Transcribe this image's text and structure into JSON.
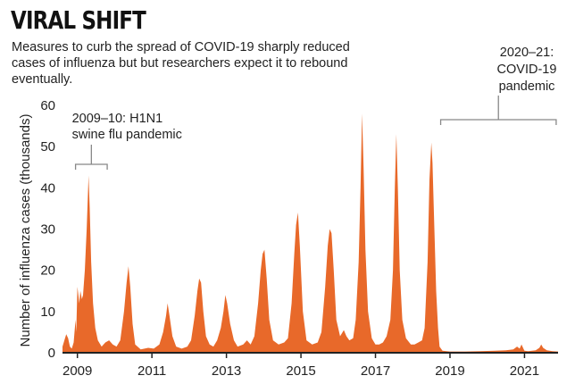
{
  "header": {
    "title": "VIRAL SHIFT",
    "subtitle": "Measures to curb the spread of COVID-19 sharply reduced cases of influenza but but researchers expect it to rebound eventually."
  },
  "colors": {
    "fill": "#e8692a",
    "axis": "#222222",
    "bracket": "#888888"
  },
  "chart_data": {
    "type": "area",
    "ylabel": "Number of influenza cases (thousands)",
    "ylim": [
      0,
      60
    ],
    "yticks": [
      0,
      10,
      20,
      30,
      40,
      50,
      60
    ],
    "xlim": [
      2008.6,
      2021.9
    ],
    "xticks": [
      2009,
      2011,
      2013,
      2015,
      2017,
      2019,
      2021
    ],
    "grid": false,
    "series": [
      {
        "points": [
          [
            2008.6,
            1.5
          ],
          [
            2008.65,
            3
          ],
          [
            2008.7,
            4.5
          ],
          [
            2008.75,
            3.5
          ],
          [
            2008.8,
            1.5
          ],
          [
            2008.85,
            1
          ],
          [
            2008.9,
            2.5
          ],
          [
            2008.95,
            8
          ],
          [
            2008.97,
            5
          ],
          [
            2009.0,
            16
          ],
          [
            2009.05,
            12
          ],
          [
            2009.08,
            15
          ],
          [
            2009.12,
            13
          ],
          [
            2009.15,
            14
          ],
          [
            2009.2,
            20
          ],
          [
            2009.25,
            30
          ],
          [
            2009.3,
            43
          ],
          [
            2009.33,
            35
          ],
          [
            2009.37,
            22
          ],
          [
            2009.42,
            12
          ],
          [
            2009.48,
            6
          ],
          [
            2009.55,
            3
          ],
          [
            2009.65,
            1.5
          ],
          [
            2009.75,
            2.5
          ],
          [
            2009.85,
            3
          ],
          [
            2009.95,
            2
          ],
          [
            2010.05,
            1.5
          ],
          [
            2010.15,
            3
          ],
          [
            2010.25,
            10
          ],
          [
            2010.32,
            17
          ],
          [
            2010.37,
            21
          ],
          [
            2010.42,
            16
          ],
          [
            2010.48,
            7
          ],
          [
            2010.55,
            2
          ],
          [
            2010.7,
            0.8
          ],
          [
            2010.9,
            1.2
          ],
          [
            2011.05,
            1
          ],
          [
            2011.2,
            2
          ],
          [
            2011.3,
            5
          ],
          [
            2011.38,
            9
          ],
          [
            2011.42,
            12
          ],
          [
            2011.47,
            9
          ],
          [
            2011.55,
            4
          ],
          [
            2011.65,
            1.5
          ],
          [
            2011.8,
            1
          ],
          [
            2011.95,
            1.5
          ],
          [
            2012.05,
            3
          ],
          [
            2012.15,
            9
          ],
          [
            2012.22,
            15
          ],
          [
            2012.27,
            18
          ],
          [
            2012.32,
            17
          ],
          [
            2012.38,
            10
          ],
          [
            2012.45,
            4
          ],
          [
            2012.55,
            2
          ],
          [
            2012.65,
            1.5
          ],
          [
            2012.75,
            3
          ],
          [
            2012.85,
            6
          ],
          [
            2012.92,
            10
          ],
          [
            2012.97,
            14
          ],
          [
            2013.02,
            12
          ],
          [
            2013.1,
            7
          ],
          [
            2013.2,
            3
          ],
          [
            2013.3,
            1.5
          ],
          [
            2013.45,
            2
          ],
          [
            2013.55,
            3
          ],
          [
            2013.65,
            2
          ],
          [
            2013.75,
            4
          ],
          [
            2013.85,
            12
          ],
          [
            2013.92,
            20
          ],
          [
            2013.97,
            24
          ],
          [
            2014.02,
            25
          ],
          [
            2014.08,
            18
          ],
          [
            2014.15,
            8
          ],
          [
            2014.25,
            3
          ],
          [
            2014.4,
            2
          ],
          [
            2014.55,
            2.5
          ],
          [
            2014.65,
            3.5
          ],
          [
            2014.75,
            12
          ],
          [
            2014.82,
            24
          ],
          [
            2014.87,
            31
          ],
          [
            2014.92,
            34
          ],
          [
            2014.97,
            26
          ],
          [
            2015.05,
            10
          ],
          [
            2015.15,
            3
          ],
          [
            2015.3,
            2
          ],
          [
            2015.45,
            2.5
          ],
          [
            2015.55,
            5
          ],
          [
            2015.65,
            16
          ],
          [
            2015.72,
            26
          ],
          [
            2015.77,
            30
          ],
          [
            2015.82,
            29
          ],
          [
            2015.88,
            20
          ],
          [
            2015.95,
            8
          ],
          [
            2016.05,
            4
          ],
          [
            2016.15,
            5.5
          ],
          [
            2016.22,
            4
          ],
          [
            2016.3,
            3
          ],
          [
            2016.4,
            3.5
          ],
          [
            2016.47,
            8
          ],
          [
            2016.55,
            22
          ],
          [
            2016.6,
            40
          ],
          [
            2016.64,
            58
          ],
          [
            2016.68,
            45
          ],
          [
            2016.73,
            25
          ],
          [
            2016.8,
            10
          ],
          [
            2016.9,
            3.5
          ],
          [
            2017.0,
            2
          ],
          [
            2017.1,
            2
          ],
          [
            2017.2,
            2.5
          ],
          [
            2017.3,
            4
          ],
          [
            2017.4,
            8
          ],
          [
            2017.47,
            20
          ],
          [
            2017.52,
            40
          ],
          [
            2017.56,
            53
          ],
          [
            2017.6,
            40
          ],
          [
            2017.65,
            20
          ],
          [
            2017.72,
            8
          ],
          [
            2017.82,
            3.5
          ],
          [
            2017.95,
            2
          ],
          [
            2018.05,
            2
          ],
          [
            2018.15,
            2.5
          ],
          [
            2018.25,
            3
          ],
          [
            2018.32,
            6
          ],
          [
            2018.4,
            22
          ],
          [
            2018.45,
            42
          ],
          [
            2018.5,
            51
          ],
          [
            2018.53,
            46
          ],
          [
            2018.58,
            30
          ],
          [
            2018.63,
            15
          ],
          [
            2018.68,
            6
          ],
          [
            2018.72,
            1.5
          ],
          [
            2018.8,
            0.5
          ],
          [
            2019.0,
            0.3
          ],
          [
            2019.4,
            0.3
          ],
          [
            2019.8,
            0.4
          ],
          [
            2020.2,
            0.5
          ],
          [
            2020.5,
            0.6
          ],
          [
            2020.7,
            0.8
          ],
          [
            2020.8,
            1.5
          ],
          [
            2020.87,
            1
          ],
          [
            2020.92,
            2
          ],
          [
            2020.97,
            1
          ],
          [
            2021.0,
            0.5
          ],
          [
            2021.1,
            0.4
          ],
          [
            2021.2,
            0.5
          ],
          [
            2021.3,
            0.6
          ],
          [
            2021.4,
            1.2
          ],
          [
            2021.45,
            2
          ],
          [
            2021.5,
            1.2
          ],
          [
            2021.6,
            0.6
          ],
          [
            2021.75,
            0.4
          ],
          [
            2021.9,
            0.3
          ]
        ]
      }
    ],
    "annotations": [
      {
        "lines": [
          "2009–10: H1N1",
          "swine flu pandemic"
        ],
        "from": 2008.95,
        "to": 2009.8
      },
      {
        "lines": [
          "2020–21:",
          "COVID-19",
          "pandemic"
        ],
        "from": 2018.75,
        "to": 2021.85
      }
    ]
  }
}
